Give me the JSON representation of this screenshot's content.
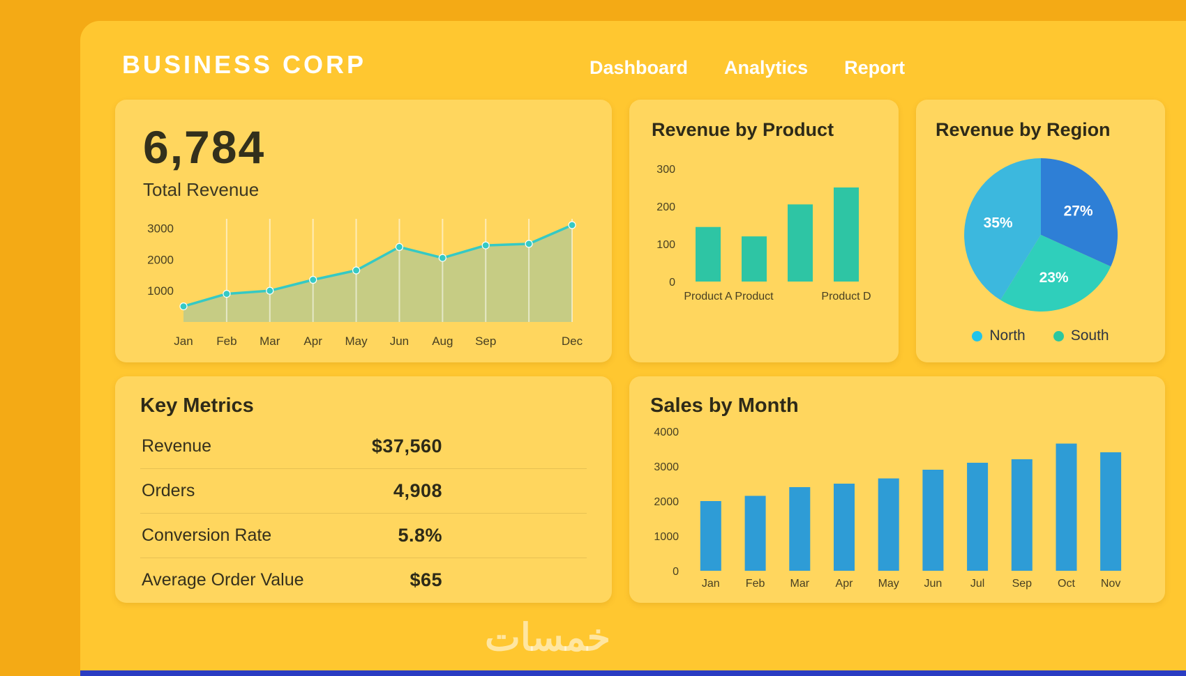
{
  "header": {
    "title": "BUSINESS CORP",
    "nav": [
      {
        "label": "Dashboard"
      },
      {
        "label": "Analytics"
      },
      {
        "label": "Report"
      }
    ]
  },
  "total_revenue": {
    "value": "6,784",
    "label": "Total Revenue"
  },
  "key_metrics": {
    "title": "Key Metrics",
    "rows": [
      {
        "label": "Revenue",
        "value": "$37,560"
      },
      {
        "label": "Orders",
        "value": "4,908"
      },
      {
        "label": "Conversion Rate",
        "value": "5.8%"
      },
      {
        "label": "Average Order Value",
        "value": "$65"
      }
    ]
  },
  "watermark": "خمسات",
  "colors": {
    "background": "#F4AA15",
    "panel": "#FFC730",
    "card": "#FFD65E",
    "accent_teal": "#2EC5A4",
    "accent_blue": "#2E9CD6",
    "accent_cyan": "#35C9C4",
    "bottom_strip": "#2A3CC2"
  },
  "chart_data": [
    {
      "id": "revenue_trend",
      "type": "area",
      "title": "Total Revenue",
      "x_labels": [
        "Jan",
        "Feb",
        "Mar",
        "Apr",
        "May",
        "Jun",
        "Aug",
        "Sep",
        "",
        "Dec"
      ],
      "values": [
        500,
        900,
        1000,
        1350,
        1650,
        2400,
        2050,
        2450,
        2500,
        3100
      ],
      "y_ticks": [
        1000,
        2000,
        3000
      ],
      "ylim": [
        0,
        3300
      ],
      "line_color": "#35C9C4",
      "fill_color": "rgba(168,198,152,0.65)",
      "grid": "vertical"
    },
    {
      "id": "revenue_by_product",
      "type": "bar",
      "title": "Revenue by Product",
      "categories": [
        "Product A",
        "Product",
        "",
        "Product D"
      ],
      "values": [
        145,
        120,
        205,
        250
      ],
      "y_ticks": [
        0,
        100,
        200,
        300
      ],
      "ylim": [
        0,
        300
      ],
      "bar_color": "#2EC5A4"
    },
    {
      "id": "revenue_by_region",
      "type": "pie",
      "title": "Revenue by Region",
      "start_angle": -90,
      "slices": [
        {
          "label": "27%",
          "value": 27,
          "color": "#2E7FD6"
        },
        {
          "label": "23%",
          "value": 23,
          "color": "#2FCFBB"
        },
        {
          "label": "35%",
          "value": 35,
          "color": "#3CB8DE"
        }
      ],
      "legend": [
        {
          "label": "North",
          "color": "#22C4E8"
        },
        {
          "label": "South",
          "color": "#2BC79F"
        }
      ]
    },
    {
      "id": "sales_by_month",
      "type": "bar",
      "title": "Sales by Month",
      "categories": [
        "Jan",
        "Feb",
        "Mar",
        "Apr",
        "May",
        "Jun",
        "Jul",
        "Sep",
        "Oct",
        "Nov"
      ],
      "values": [
        2000,
        2150,
        2400,
        2500,
        2650,
        2900,
        3100,
        3200,
        3650,
        3400
      ],
      "y_ticks": [
        0,
        1000,
        2000,
        3000,
        4000
      ],
      "ylim": [
        0,
        4000
      ],
      "bar_color": "#2E9CD6"
    }
  ]
}
